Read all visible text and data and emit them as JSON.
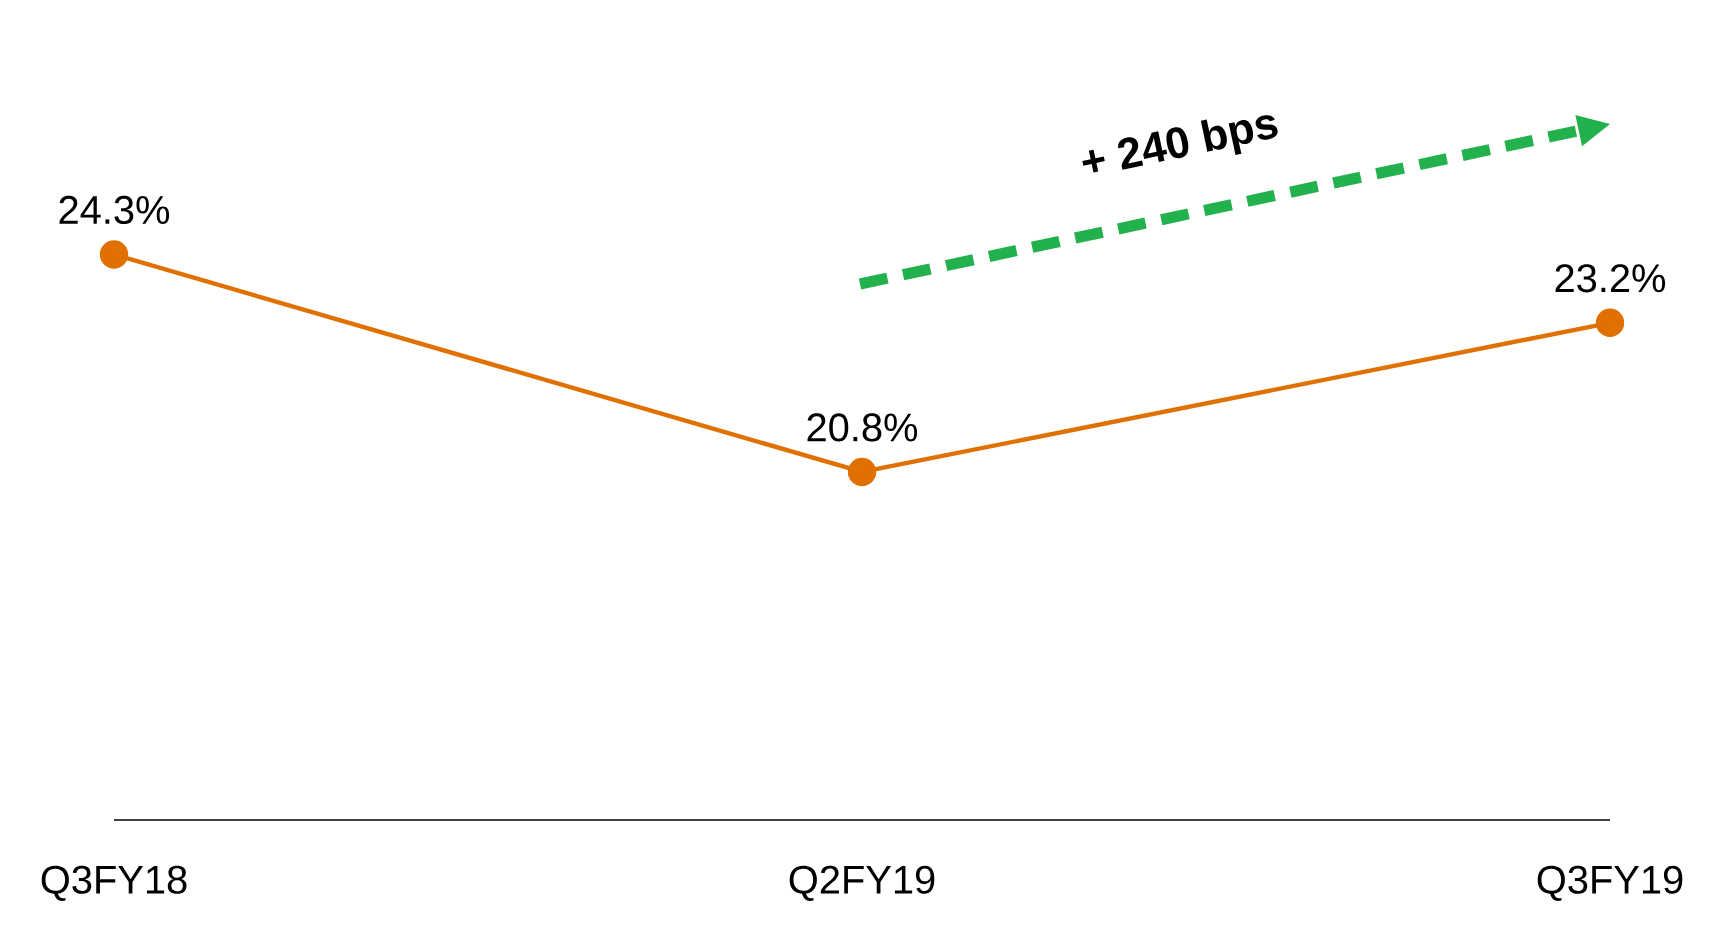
{
  "chart_data": {
    "type": "line",
    "categories": [
      "Q3FY18",
      "Q2FY19",
      "Q3FY19"
    ],
    "series": [
      {
        "color": "#e07000",
        "values": [
          24.3,
          20.8,
          23.2
        ],
        "value_labels": [
          "24.3%",
          "20.8%",
          "23.2%"
        ]
      }
    ],
    "marker": "circle",
    "line_style": "solid",
    "annotations": [
      "+ 240 bps"
    ]
  }
}
